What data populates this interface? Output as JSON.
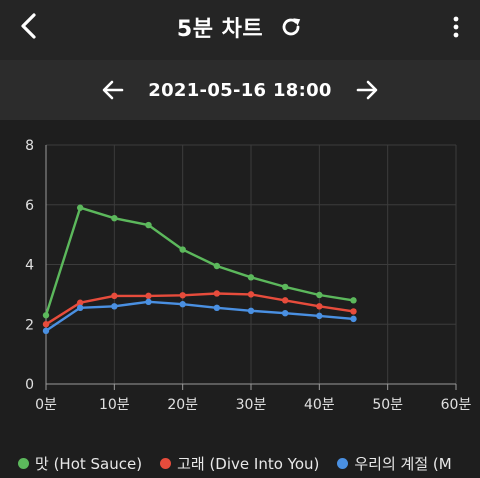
{
  "header": {
    "title": "5분 차트",
    "back_icon": "chevron-left-icon",
    "refresh_icon": "refresh-icon",
    "more_icon": "more-vertical-icon"
  },
  "date_nav": {
    "date": "2021-05-16 18:00",
    "prev_icon": "arrow-left-icon",
    "next_icon": "arrow-right-icon"
  },
  "chart_data": {
    "type": "line",
    "x": [
      0,
      5,
      10,
      15,
      20,
      25,
      30,
      35,
      40,
      45
    ],
    "xticks": [
      0,
      10,
      20,
      30,
      40,
      50,
      60
    ],
    "xtick_labels": [
      "0분",
      "10분",
      "20분",
      "30분",
      "40분",
      "50분",
      "60분"
    ],
    "yticks": [
      0,
      2,
      4,
      6,
      8
    ],
    "xlim": [
      0,
      60
    ],
    "ylim": [
      0,
      8
    ],
    "grid": true,
    "legend": "bottom",
    "series": [
      {
        "name": "맛 (Hot Sauce)",
        "color": "#5cb85c",
        "values": [
          2.3,
          5.9,
          5.55,
          5.32,
          4.5,
          3.95,
          3.57,
          3.25,
          2.98,
          2.8
        ]
      },
      {
        "name": "고래 (Dive Into You)",
        "color": "#e74c3c",
        "values": [
          2.0,
          2.72,
          2.95,
          2.95,
          2.97,
          3.03,
          3.0,
          2.8,
          2.6,
          2.43
        ]
      },
      {
        "name": "우리의 계절 (M",
        "color": "#4a90e2",
        "values": [
          1.78,
          2.55,
          2.6,
          2.75,
          2.67,
          2.55,
          2.45,
          2.37,
          2.28,
          2.18
        ]
      }
    ]
  }
}
